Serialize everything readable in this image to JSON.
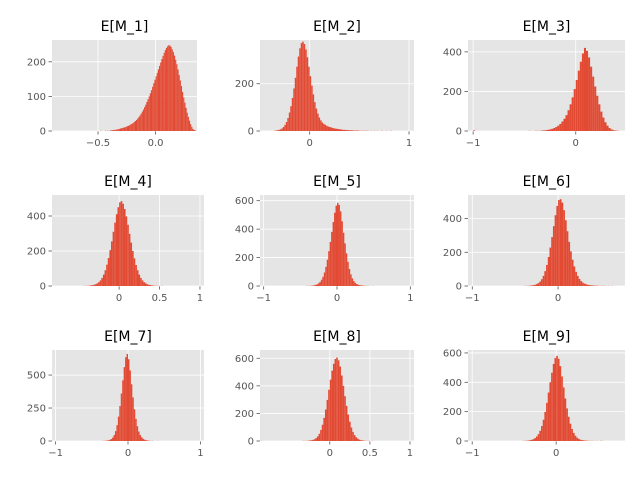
{
  "chart_data": [
    {
      "type": "bar",
      "title": "E[M_1]",
      "xlim": [
        -0.9,
        0.36
      ],
      "ylim": [
        0,
        263
      ],
      "xticks": [
        -0.5,
        0.0
      ],
      "xtick_labels": [
        "−0.5",
        "0.0"
      ],
      "yticks": [
        0,
        100,
        200
      ],
      "ytick_labels": [
        "0",
        "100",
        "200"
      ],
      "bin_start": -0.6,
      "bin_width": 0.01,
      "values": [
        0,
        0,
        0,
        0,
        0,
        0,
        0,
        0,
        0,
        0,
        0,
        0,
        1,
        0,
        0,
        0,
        1,
        0,
        1,
        0,
        1,
        2,
        2,
        3,
        3,
        4,
        4,
        5,
        6,
        7,
        8,
        9,
        10,
        11,
        12,
        14,
        15,
        17,
        19,
        21,
        23,
        26,
        29,
        32,
        36,
        40,
        45,
        50,
        56,
        62,
        69,
        76,
        84,
        92,
        100,
        109,
        118,
        128,
        138,
        148,
        158,
        168,
        178,
        188,
        198,
        208,
        217,
        226,
        234,
        240,
        245,
        248,
        247,
        243,
        236,
        228,
        218,
        206,
        193,
        178,
        162,
        146,
        130,
        113,
        97,
        82,
        67,
        53,
        41,
        30,
        20,
        12,
        6,
        3,
        2
      ]
    },
    {
      "type": "bar",
      "title": "E[M_2]",
      "xlim": [
        -0.5,
        1.05
      ],
      "ylim": [
        0,
        385
      ],
      "xticks": [
        0,
        1
      ],
      "xtick_labels": [
        "0",
        "1"
      ],
      "yticks": [
        0,
        200
      ],
      "ytick_labels": [
        "0",
        "200"
      ],
      "bin_start": -0.36,
      "bin_width": 0.015,
      "values": [
        1,
        2,
        3,
        5,
        7,
        11,
        17,
        26,
        38,
        55,
        78,
        105,
        140,
        180,
        225,
        272,
        315,
        350,
        372,
        378,
        368,
        345,
        312,
        272,
        232,
        192,
        155,
        122,
        95,
        74,
        57,
        45,
        36,
        30,
        26,
        22,
        19,
        17,
        15,
        13,
        11,
        10,
        9,
        8,
        7,
        6,
        5,
        5,
        4,
        4,
        3,
        3,
        3,
        2,
        2,
        2,
        2,
        1,
        1,
        1,
        1,
        1,
        1,
        1,
        0,
        1,
        0,
        1,
        0,
        1,
        0,
        0,
        1,
        0,
        0,
        1,
        0,
        0,
        1
      ]
    },
    {
      "type": "bar",
      "title": "E[M_3]",
      "xlim": [
        -1.05,
        0.48
      ],
      "ylim": [
        0,
        460
      ],
      "xticks": [
        -1,
        0
      ],
      "xtick_labels": [
        "−1",
        "0"
      ],
      "yticks": [
        0,
        200,
        400
      ],
      "ytick_labels": [
        "0",
        "200",
        "400"
      ],
      "bin_start": -1.0,
      "bin_width": 0.02,
      "values": [
        3,
        0,
        0,
        0,
        0,
        0,
        0,
        0,
        0,
        0,
        0,
        0,
        0,
        0,
        0,
        0,
        0,
        0,
        0,
        0,
        0,
        0,
        0,
        0,
        0,
        0,
        0,
        1,
        0,
        0,
        1,
        1,
        1,
        2,
        3,
        4,
        6,
        8,
        11,
        15,
        20,
        27,
        36,
        48,
        62,
        80,
        105,
        135,
        170,
        212,
        258,
        305,
        350,
        392,
        420,
        405,
        372,
        325,
        275,
        225,
        178,
        135,
        98,
        68,
        44,
        27,
        15,
        8,
        4,
        2,
        1
      ]
    },
    {
      "type": "bar",
      "title": "E[M_4]",
      "xlim": [
        -0.83,
        1.05
      ],
      "ylim": [
        0,
        520
      ],
      "xticks": [
        0,
        0.5,
        1
      ],
      "xtick_labels": [
        "0",
        "0.5",
        "1"
      ],
      "yticks": [
        0,
        200,
        400
      ],
      "ytick_labels": [
        "0",
        "200",
        "400"
      ],
      "bin_start": -0.66,
      "bin_width": 0.02,
      "values": [
        0,
        0,
        0,
        0,
        0,
        0,
        0,
        0,
        0,
        0,
        0,
        1,
        1,
        1,
        2,
        3,
        5,
        7,
        10,
        15,
        22,
        32,
        46,
        65,
        90,
        122,
        160,
        205,
        255,
        310,
        362,
        410,
        450,
        478,
        485,
        470,
        440,
        398,
        350,
        298,
        248,
        200,
        158,
        120,
        90,
        65,
        46,
        32,
        22,
        15,
        10,
        7,
        5,
        3,
        2,
        1,
        1,
        1,
        0,
        1
      ]
    },
    {
      "type": "bar",
      "title": "E[M_5]",
      "xlim": [
        -1.05,
        1.05
      ],
      "ylim": [
        0,
        640
      ],
      "xticks": [
        -1,
        0,
        1
      ],
      "xtick_labels": [
        "−1",
        "0",
        "1"
      ],
      "yticks": [
        0,
        200,
        400,
        600
      ],
      "ytick_labels": [
        "0",
        "200",
        "400",
        "600"
      ],
      "bin_start": -1.0,
      "bin_width": 0.02,
      "values": [
        0,
        0,
        0,
        0,
        0,
        0,
        0,
        0,
        0,
        0,
        0,
        0,
        0,
        0,
        0,
        0,
        0,
        0,
        0,
        0,
        0,
        0,
        0,
        0,
        0,
        0,
        0,
        0,
        0,
        1,
        1,
        1,
        2,
        3,
        5,
        8,
        12,
        19,
        29,
        44,
        65,
        95,
        135,
        185,
        245,
        310,
        380,
        450,
        515,
        565,
        585,
        570,
        525,
        455,
        375,
        300,
        230,
        170,
        120,
        82,
        54,
        35,
        22,
        14,
        9,
        6,
        4,
        3,
        2,
        1,
        1,
        1,
        0,
        0,
        1
      ]
    },
    {
      "type": "bar",
      "title": "E[M_6]",
      "xlim": [
        -1.05,
        0.78
      ],
      "ylim": [
        0,
        540
      ],
      "xticks": [
        -1,
        0
      ],
      "xtick_labels": [
        "−1",
        "0"
      ],
      "yticks": [
        0,
        200,
        400
      ],
      "ytick_labels": [
        "0",
        "200",
        "400"
      ],
      "bin_start": -1.0,
      "bin_width": 0.02,
      "values": [
        0,
        0,
        0,
        0,
        0,
        0,
        0,
        0,
        0,
        0,
        0,
        0,
        0,
        0,
        0,
        0,
        0,
        0,
        0,
        0,
        0,
        0,
        0,
        0,
        0,
        0,
        0,
        0,
        0,
        0,
        1,
        1,
        1,
        2,
        3,
        5,
        7,
        11,
        17,
        26,
        40,
        60,
        88,
        125,
        172,
        228,
        290,
        355,
        420,
        475,
        510,
        515,
        495,
        450,
        390,
        325,
        262,
        205,
        156,
        116,
        84,
        60,
        42,
        29,
        20,
        14,
        10,
        7,
        5,
        4,
        3,
        2,
        2,
        1,
        1,
        1,
        1,
        1,
        0,
        1,
        0,
        1
      ]
    },
    {
      "type": "bar",
      "title": "E[M_7]",
      "xlim": [
        -1.05,
        1.05
      ],
      "ylim": [
        0,
        690
      ],
      "xticks": [
        -1,
        0,
        1
      ],
      "xtick_labels": [
        "−1",
        "0",
        "1"
      ],
      "yticks": [
        0,
        250,
        500
      ],
      "ytick_labels": [
        "0",
        "250",
        "500"
      ],
      "bin_start": -1.0,
      "bin_width": 0.02,
      "values": [
        0,
        0,
        0,
        0,
        0,
        0,
        0,
        0,
        0,
        0,
        0,
        0,
        0,
        0,
        0,
        0,
        0,
        0,
        0,
        0,
        0,
        0,
        0,
        0,
        0,
        0,
        0,
        0,
        0,
        0,
        0,
        0,
        1,
        1,
        2,
        3,
        5,
        9,
        15,
        26,
        45,
        75,
        120,
        185,
        265,
        360,
        460,
        560,
        635,
        660,
        620,
        535,
        430,
        330,
        240,
        168,
        112,
        72,
        45,
        28,
        17,
        10,
        6,
        4,
        2,
        1,
        1,
        1,
        0,
        0,
        1
      ]
    },
    {
      "type": "bar",
      "title": "E[M_8]",
      "xlim": [
        -0.87,
        1.05
      ],
      "ylim": [
        0,
        660
      ],
      "xticks": [
        0,
        0.5,
        1
      ],
      "xtick_labels": [
        "0",
        "0.5",
        "1"
      ],
      "yticks": [
        0,
        200,
        400,
        600
      ],
      "ytick_labels": [
        "0",
        "200",
        "400",
        "600"
      ],
      "bin_start": -0.86,
      "bin_width": 0.02,
      "values": [
        1,
        0,
        0,
        0,
        0,
        0,
        0,
        0,
        0,
        0,
        0,
        0,
        0,
        0,
        0,
        0,
        0,
        0,
        0,
        0,
        0,
        0,
        0,
        0,
        0,
        0,
        1,
        1,
        1,
        2,
        3,
        5,
        8,
        13,
        21,
        33,
        52,
        80,
        118,
        168,
        228,
        298,
        372,
        445,
        510,
        560,
        595,
        605,
        585,
        540,
        475,
        400,
        325,
        255,
        192,
        140,
        98,
        66,
        43,
        27,
        17,
        10,
        6,
        4,
        2,
        1,
        1,
        1,
        0,
        1
      ]
    },
    {
      "type": "bar",
      "title": "E[M_9]",
      "xlim": [
        -1.05,
        0.82
      ],
      "ylim": [
        0,
        620
      ],
      "xticks": [
        -1,
        0
      ],
      "xtick_labels": [
        "−1",
        "0"
      ],
      "yticks": [
        0,
        200,
        400,
        600
      ],
      "ytick_labels": [
        "0",
        "200",
        "400",
        "600"
      ],
      "bin_start": -1.0,
      "bin_width": 0.02,
      "values": [
        0,
        0,
        0,
        0,
        0,
        0,
        0,
        0,
        0,
        0,
        0,
        0,
        0,
        0,
        0,
        0,
        0,
        0,
        0,
        0,
        0,
        0,
        0,
        0,
        0,
        0,
        0,
        0,
        0,
        0,
        1,
        1,
        2,
        3,
        5,
        8,
        13,
        20,
        31,
        47,
        70,
        102,
        145,
        198,
        260,
        330,
        400,
        465,
        525,
        565,
        580,
        560,
        510,
        440,
        365,
        290,
        222,
        165,
        118,
        82,
        55,
        36,
        23,
        15,
        9,
        6,
        4,
        3,
        2,
        1,
        1,
        1,
        1,
        0,
        1,
        0,
        1,
        1
      ]
    }
  ]
}
